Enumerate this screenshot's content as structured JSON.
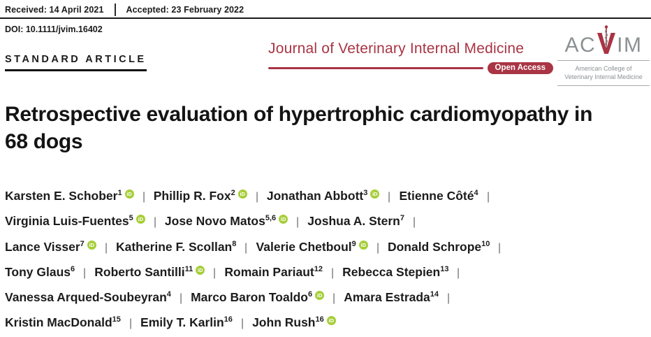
{
  "meta": {
    "received": "Received: 14 April 2021",
    "accepted": "Accepted: 23 February 2022",
    "doi": "DOI: 10.1111/jvim.16402",
    "article_type": "STANDARD ARTICLE"
  },
  "journal": {
    "name": "Journal of Veterinary Internal Medicine",
    "open_access_label": "Open Access",
    "logo": {
      "acronym_left": "AC",
      "acronym_right": "IM",
      "subtitle_line1": "American College of",
      "subtitle_line2": "Veterinary Internal Medicine"
    }
  },
  "article": {
    "title_line1": "Retrospective evaluation of hypertrophic cardiomyopathy in",
    "title_line2": "68 dogs"
  },
  "icons": {
    "orcid_label": "iD"
  },
  "colors": {
    "journal_red": "#A93444",
    "orcid_green": "#A6CE39",
    "logo_gray": "#8B9193",
    "text_dark": "#1A1A1A"
  },
  "author_lines": [
    {
      "trailing_separator": true,
      "authors": [
        {
          "name": "Karsten E. Schober",
          "sup": "1",
          "orcid": true
        },
        {
          "name": "Phillip R. Fox",
          "sup": "2",
          "orcid": true
        },
        {
          "name": "Jonathan Abbott",
          "sup": "3",
          "orcid": true
        },
        {
          "name": "Etienne Côté",
          "sup": "4",
          "orcid": false
        }
      ]
    },
    {
      "trailing_separator": true,
      "authors": [
        {
          "name": "Virginia Luis-Fuentes",
          "sup": "5",
          "orcid": true
        },
        {
          "name": "Jose Novo Matos",
          "sup": "5,6",
          "orcid": true
        },
        {
          "name": "Joshua A. Stern",
          "sup": "7",
          "orcid": false
        }
      ]
    },
    {
      "trailing_separator": true,
      "authors": [
        {
          "name": "Lance Visser",
          "sup": "7",
          "orcid": true
        },
        {
          "name": "Katherine F. Scollan",
          "sup": "8",
          "orcid": false
        },
        {
          "name": "Valerie Chetboul",
          "sup": "9",
          "orcid": true
        },
        {
          "name": "Donald Schrope",
          "sup": "10",
          "orcid": false
        }
      ]
    },
    {
      "trailing_separator": true,
      "authors": [
        {
          "name": "Tony Glaus",
          "sup": "6",
          "orcid": false
        },
        {
          "name": "Roberto Santilli",
          "sup": "11",
          "orcid": true
        },
        {
          "name": "Romain Pariaut",
          "sup": "12",
          "orcid": false
        },
        {
          "name": "Rebecca Stepien",
          "sup": "13",
          "orcid": false
        }
      ]
    },
    {
      "trailing_separator": true,
      "authors": [
        {
          "name": "Vanessa Arqued-Soubeyran",
          "sup": "4",
          "orcid": false
        },
        {
          "name": "Marco Baron Toaldo",
          "sup": "6",
          "orcid": true
        },
        {
          "name": "Amara Estrada",
          "sup": "14",
          "orcid": false
        }
      ]
    },
    {
      "trailing_separator": false,
      "authors": [
        {
          "name": "Kristin MacDonald",
          "sup": "15",
          "orcid": false
        },
        {
          "name": "Emily T. Karlin",
          "sup": "16",
          "orcid": false
        },
        {
          "name": "John Rush",
          "sup": "16",
          "orcid": true
        }
      ]
    }
  ]
}
